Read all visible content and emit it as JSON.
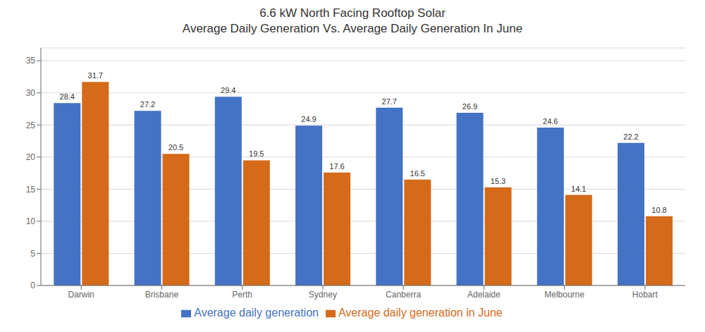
{
  "chart_data": {
    "type": "bar",
    "title": "6.6 kW North Facing Rooftop Solar",
    "subtitle": "Average Daily Generation Vs. Average Daily Generation In June",
    "categories": [
      "Darwin",
      "Brisbane",
      "Perth",
      "Sydney",
      "Canberra",
      "Adelaide",
      "Melbourne",
      "Hobart"
    ],
    "series": [
      {
        "name": "Average daily generation",
        "color": "#4472C4",
        "values": [
          28.4,
          27.2,
          29.4,
          24.9,
          27.7,
          26.9,
          24.6,
          22.2
        ]
      },
      {
        "name": "Average daily generation in June",
        "color": "#D46A1A",
        "values": [
          31.7,
          20.5,
          19.5,
          17.6,
          16.5,
          15.3,
          14.1,
          10.8
        ]
      }
    ],
    "ylim": [
      0,
      37
    ],
    "yticks": [
      0,
      5,
      10,
      15,
      20,
      25,
      30,
      35
    ],
    "grid": true,
    "legend": "bottom",
    "data_labels": true
  }
}
